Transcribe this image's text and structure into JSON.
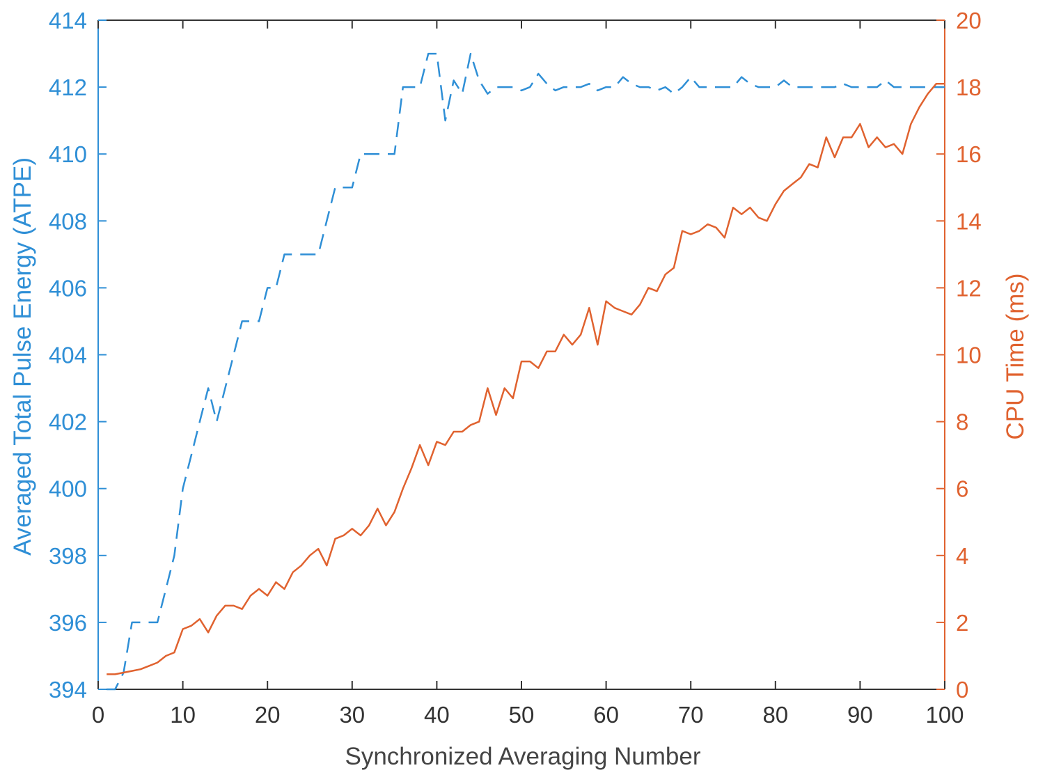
{
  "chart_data": {
    "type": "line",
    "title": "",
    "xlabel": "Synchronized Averaging Number",
    "ylabel_left": "Averaged Total Pulse Energy (ATPE)",
    "ylabel_right": "CPU Time (ms)",
    "xlim": [
      0,
      100
    ],
    "ylim_left": [
      394,
      414
    ],
    "ylim_right": [
      0,
      20
    ],
    "x_ticks": [
      0,
      10,
      20,
      30,
      40,
      50,
      60,
      70,
      80,
      90,
      100
    ],
    "y_left_ticks": [
      394,
      396,
      398,
      400,
      402,
      404,
      406,
      408,
      410,
      412,
      414
    ],
    "y_right_ticks": [
      0,
      2,
      4,
      6,
      8,
      10,
      12,
      14,
      16,
      18,
      20
    ],
    "grid": false,
    "legend": "none",
    "colors": {
      "atpe": "#2f8fd6",
      "cpu": "#e0622f",
      "axis_left": "#2f8fd6",
      "axis_right": "#e0622f",
      "axis_bottom": "#333333"
    },
    "series": [
      {
        "axis": "left",
        "style": "dashed",
        "x": [
          1,
          2,
          3,
          4,
          5,
          6,
          7,
          8,
          9,
          10,
          11,
          12,
          13,
          14,
          15,
          16,
          17,
          18,
          19,
          20,
          21,
          22,
          23,
          24,
          25,
          26,
          27,
          28,
          29,
          30,
          31,
          32,
          33,
          34,
          35,
          36,
          37,
          38,
          39,
          40,
          41,
          42,
          43,
          44,
          45,
          46,
          47,
          48,
          49,
          50,
          51,
          52,
          53,
          54,
          55,
          56,
          57,
          58,
          59,
          60,
          61,
          62,
          63,
          64,
          65,
          66,
          67,
          68,
          69,
          70,
          71,
          72,
          73,
          74,
          75,
          76,
          77,
          78,
          79,
          80,
          81,
          82,
          83,
          84,
          85,
          86,
          87,
          88,
          89,
          90,
          91,
          92,
          93,
          94,
          95,
          96,
          97,
          98,
          99,
          100
        ],
        "values": [
          394,
          394,
          394.5,
          396,
          396,
          396,
          396,
          397,
          398,
          400,
          401,
          402,
          403,
          402,
          403,
          404,
          405,
          405,
          405,
          406,
          406,
          407,
          407,
          407,
          407,
          407,
          408,
          409,
          409,
          409,
          410,
          410,
          410,
          410,
          410,
          412,
          412,
          412,
          413,
          413,
          411,
          412.2,
          411.8,
          413,
          412.2,
          411.8,
          412,
          412,
          412,
          411.9,
          412,
          412.4,
          412.1,
          411.9,
          412,
          412,
          412,
          412.1,
          411.9,
          412,
          412,
          412.3,
          412.1,
          412,
          412,
          411.9,
          412,
          411.8,
          412,
          412.3,
          412,
          412,
          412,
          412,
          412,
          412.3,
          412.1,
          412,
          412,
          412,
          412.2,
          412,
          412,
          412,
          412,
          412,
          412,
          412.1,
          412,
          412,
          412,
          412,
          412.2,
          412,
          412,
          412,
          412,
          412,
          412,
          412
        ]
      },
      {
        "axis": "right",
        "style": "solid",
        "x": [
          1,
          2,
          3,
          4,
          5,
          6,
          7,
          8,
          9,
          10,
          11,
          12,
          13,
          14,
          15,
          16,
          17,
          18,
          19,
          20,
          21,
          22,
          23,
          24,
          25,
          26,
          27,
          28,
          29,
          30,
          31,
          32,
          33,
          34,
          35,
          36,
          37,
          38,
          39,
          40,
          41,
          42,
          43,
          44,
          45,
          46,
          47,
          48,
          49,
          50,
          51,
          52,
          53,
          54,
          55,
          56,
          57,
          58,
          59,
          60,
          61,
          62,
          63,
          64,
          65,
          66,
          67,
          68,
          69,
          70,
          71,
          72,
          73,
          74,
          75,
          76,
          77,
          78,
          79,
          80,
          81,
          82,
          83,
          84,
          85,
          86,
          87,
          88,
          89,
          90,
          91,
          92,
          93,
          94,
          95,
          96,
          97,
          98,
          99,
          100
        ],
        "values": [
          0.45,
          0.45,
          0.5,
          0.55,
          0.6,
          0.7,
          0.8,
          1.0,
          1.1,
          1.8,
          1.9,
          2.1,
          1.7,
          2.2,
          2.5,
          2.5,
          2.4,
          2.8,
          3.0,
          2.8,
          3.2,
          3.0,
          3.5,
          3.7,
          4.0,
          4.2,
          3.7,
          4.5,
          4.6,
          4.8,
          4.6,
          4.9,
          5.4,
          4.9,
          5.3,
          6.0,
          6.6,
          7.3,
          6.7,
          7.4,
          7.3,
          7.7,
          7.7,
          7.9,
          8.0,
          9.0,
          8.2,
          9.0,
          8.7,
          9.8,
          9.8,
          9.6,
          10.1,
          10.1,
          10.6,
          10.3,
          10.6,
          11.4,
          10.3,
          11.6,
          11.4,
          11.3,
          11.2,
          11.5,
          12.0,
          11.9,
          12.4,
          12.6,
          13.7,
          13.6,
          13.7,
          13.9,
          13.8,
          13.5,
          14.4,
          14.2,
          14.4,
          14.1,
          14.0,
          14.5,
          14.9,
          15.1,
          15.3,
          15.7,
          15.6,
          16.5,
          15.9,
          16.5,
          16.5,
          16.9,
          16.2,
          16.5,
          16.2,
          16.3,
          16.0,
          16.9,
          17.4,
          17.8,
          18.1,
          18.1
        ]
      }
    ]
  }
}
